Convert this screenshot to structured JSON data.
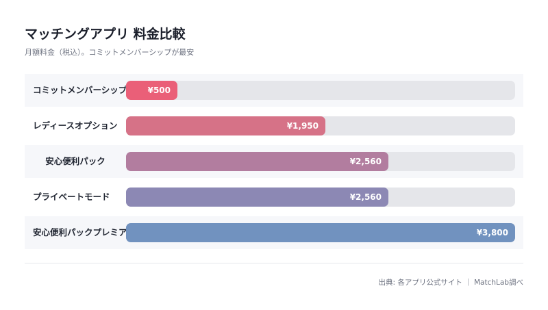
{
  "chart_data": {
    "type": "bar",
    "orientation": "horizontal",
    "title": "マッチングアプリ 料金比較",
    "subtitle": "月額料金（税込）。コミットメンバーシップが最安",
    "categories": [
      "コミットメンバーシップ",
      "レディースオプション",
      "安心便利パック",
      "プライベートモード",
      "安心便利パックプレミアム"
    ],
    "values": [
      500,
      1950,
      2560,
      2560,
      3800
    ],
    "value_labels": [
      "¥500",
      "¥1,950",
      "¥2,560",
      "¥2,560",
      "¥3,800"
    ],
    "colors": [
      "#ea5f78",
      "#d67287",
      "#b27d9f",
      "#8c88b4",
      "#7192bf"
    ],
    "xlim": [
      0,
      3800
    ],
    "grid": false,
    "legend": "none"
  },
  "footer": {
    "source": "出典: 各アプリ公式サイト ｜ MatchLab調べ"
  }
}
